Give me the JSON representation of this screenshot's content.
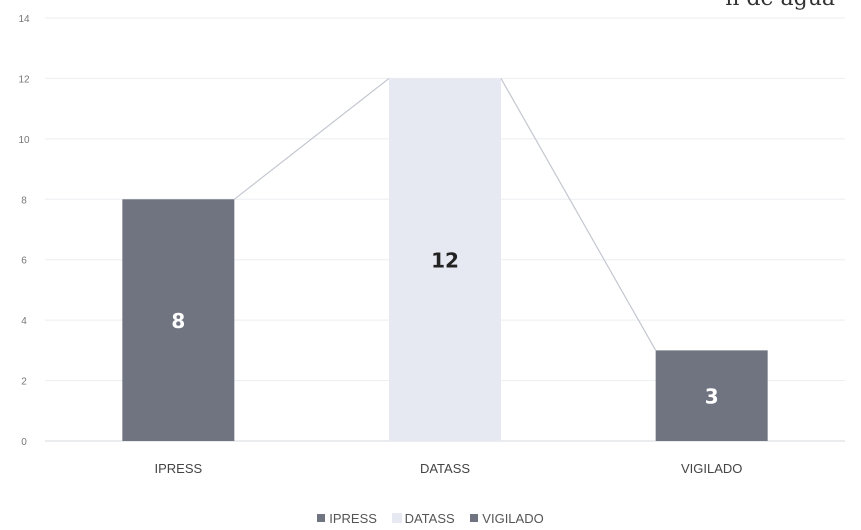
{
  "corner_text": "n de agua",
  "chart_data": {
    "type": "bar",
    "categories": [
      "IPRESS",
      "DATASS",
      "VIGILADO"
    ],
    "values": [
      8,
      12,
      3
    ],
    "data_labels": [
      "8",
      "12",
      "3"
    ],
    "bar_colors": [
      "#6f7480",
      "#e6e9f2",
      "#6f7480"
    ],
    "label_colors": [
      "#ffffff",
      "#222222",
      "#ffffff"
    ],
    "trend_line": true,
    "ylim": [
      0,
      14
    ],
    "yticks": [
      0,
      2,
      4,
      6,
      8,
      10,
      12,
      14
    ],
    "grid": true,
    "legend": {
      "position": "bottom",
      "entries": [
        "IPRESS",
        "DATASS",
        "VIGILADO"
      ]
    }
  }
}
